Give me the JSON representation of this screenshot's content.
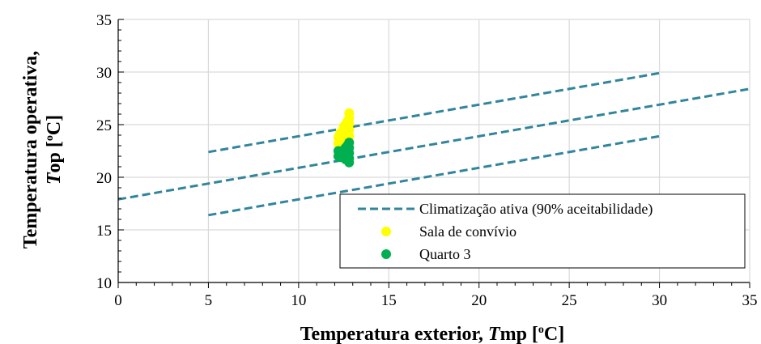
{
  "chart_data": {
    "type": "scatter",
    "xlabel": {
      "main": "Temperatura exterior, ",
      "symbol": "T",
      "sub": "mp [",
      "sup": "o",
      "unit": "C]"
    },
    "ylabel": {
      "line1": "Temperatura operativa,",
      "symbol": "T",
      "sub": "op [",
      "sup": "o",
      "unit": "C]"
    },
    "xlim": [
      0,
      35
    ],
    "ylim": [
      10,
      35
    ],
    "xticks": [
      "0",
      "5",
      "10",
      "15",
      "20",
      "25",
      "30",
      "35"
    ],
    "yticks": [
      "10",
      "15",
      "20",
      "25",
      "30",
      "35"
    ],
    "x_tick_values": [
      0,
      5,
      10,
      15,
      20,
      25,
      30,
      35
    ],
    "y_tick_values": [
      10,
      15,
      20,
      25,
      30,
      35
    ],
    "grid": true,
    "legend_position": "bottom-right",
    "lines": [
      {
        "name": "Climatização ativa (90% aceitabilidade)",
        "color": "#31859C",
        "dash": true,
        "points": [
          [
            5,
            22.4
          ],
          [
            30,
            29.9
          ]
        ]
      },
      {
        "color": "#31859C",
        "dash": true,
        "points": [
          [
            0,
            17.9
          ],
          [
            35,
            28.4
          ]
        ]
      },
      {
        "color": "#31859C",
        "dash": true,
        "points": [
          [
            5,
            16.4
          ],
          [
            30,
            23.9
          ]
        ]
      }
    ],
    "series": [
      {
        "name": "Sala de convívio",
        "color": "#FFFF00",
        "points": [
          [
            12.2,
            23.2
          ],
          [
            12.2,
            23.8
          ],
          [
            12.3,
            24.2
          ],
          [
            12.3,
            22.8
          ],
          [
            12.4,
            23.5
          ],
          [
            12.5,
            24.4
          ],
          [
            12.5,
            23.0
          ],
          [
            12.5,
            24.8
          ],
          [
            12.6,
            25.0
          ],
          [
            12.6,
            24.2
          ],
          [
            12.6,
            23.4
          ],
          [
            12.7,
            25.3
          ],
          [
            12.7,
            24.6
          ],
          [
            12.7,
            23.8
          ],
          [
            12.7,
            22.9
          ],
          [
            12.8,
            26.1
          ],
          [
            12.8,
            25.6
          ],
          [
            12.8,
            25.1
          ],
          [
            12.8,
            24.5
          ],
          [
            12.8,
            23.9
          ],
          [
            12.8,
            23.3
          ],
          [
            12.4,
            24.0
          ],
          [
            12.6,
            24.7
          ],
          [
            12.3,
            23.6
          ]
        ]
      },
      {
        "name": "Quarto 3",
        "color": "#00B050",
        "points": [
          [
            12.2,
            22.0
          ],
          [
            12.2,
            22.5
          ],
          [
            12.3,
            22.2
          ],
          [
            12.3,
            21.9
          ],
          [
            12.4,
            22.4
          ],
          [
            12.5,
            22.6
          ],
          [
            12.5,
            22.1
          ],
          [
            12.6,
            22.8
          ],
          [
            12.6,
            22.3
          ],
          [
            12.7,
            23.0
          ],
          [
            12.7,
            22.5
          ],
          [
            12.7,
            21.8
          ],
          [
            12.8,
            23.3
          ],
          [
            12.8,
            22.8
          ],
          [
            12.8,
            22.3
          ],
          [
            12.8,
            21.8
          ],
          [
            12.8,
            21.4
          ],
          [
            12.4,
            21.9
          ],
          [
            12.6,
            21.7
          ]
        ]
      }
    ]
  }
}
